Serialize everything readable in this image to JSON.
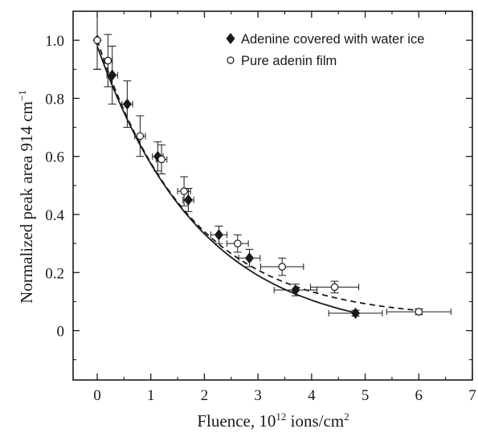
{
  "chart_data": {
    "type": "scatter",
    "title": "",
    "xlabel": {
      "prefix": "Fluence, 10",
      "sup": "12",
      "mid": " ions/cm",
      "sup2": "2"
    },
    "ylabel": {
      "text": "Normalized peak area 914 cm",
      "sup": "−1"
    },
    "xlim": [
      -0.45,
      7
    ],
    "ylim": [
      -0.17,
      1.1
    ],
    "xticks": [
      0,
      1,
      2,
      3,
      4,
      5,
      6,
      7
    ],
    "xtick_labels": [
      "0",
      "1",
      "2",
      "3",
      "4",
      "5",
      "6",
      "7"
    ],
    "yticks": [
      0,
      0.2,
      0.4,
      0.6,
      0.8,
      1.0
    ],
    "ytick_labels": [
      "0",
      "0.2",
      "0.4",
      "0.6",
      "0.8",
      "1.0"
    ],
    "grid": false,
    "legend_position": "top-right",
    "series": [
      {
        "name": "Adenine covered with water ice",
        "marker": "filled-diamond",
        "fit_line": "solid",
        "points": [
          {
            "x": 0.0,
            "y": 1.0,
            "xerr": 0.0,
            "yerr": 0.1
          },
          {
            "x": 0.28,
            "y": 0.88,
            "xerr": 0.1,
            "yerr": 0.1
          },
          {
            "x": 0.56,
            "y": 0.78,
            "xerr": 0.1,
            "yerr": 0.08
          },
          {
            "x": 1.13,
            "y": 0.6,
            "xerr": 0.1,
            "yerr": 0.05
          },
          {
            "x": 1.7,
            "y": 0.45,
            "xerr": 0.1,
            "yerr": 0.04
          },
          {
            "x": 2.27,
            "y": 0.33,
            "xerr": 0.15,
            "yerr": 0.03
          },
          {
            "x": 2.84,
            "y": 0.25,
            "xerr": 0.2,
            "yerr": 0.03
          },
          {
            "x": 3.7,
            "y": 0.14,
            "xerr": 0.4,
            "yerr": 0.02
          },
          {
            "x": 4.82,
            "y": 0.06,
            "xerr": 0.5,
            "yerr": 0.01
          }
        ],
        "fit": {
          "a": 1.0,
          "k": 0.52,
          "c": -0.02
        }
      },
      {
        "name": "Pure adenin film",
        "marker": "open-circle",
        "fit_line": "dashed",
        "points": [
          {
            "x": 0.0,
            "y": 1.0,
            "xerr": 0.0,
            "yerr": 0.1
          },
          {
            "x": 0.2,
            "y": 0.93,
            "xerr": 0.08,
            "yerr": 0.09
          },
          {
            "x": 0.8,
            "y": 0.67,
            "xerr": 0.1,
            "yerr": 0.07
          },
          {
            "x": 1.2,
            "y": 0.59,
            "xerr": 0.1,
            "yerr": 0.05
          },
          {
            "x": 1.62,
            "y": 0.48,
            "xerr": 0.12,
            "yerr": 0.05
          },
          {
            "x": 2.62,
            "y": 0.3,
            "xerr": 0.2,
            "yerr": 0.03
          },
          {
            "x": 3.45,
            "y": 0.22,
            "xerr": 0.4,
            "yerr": 0.03
          },
          {
            "x": 4.43,
            "y": 0.15,
            "xerr": 0.45,
            "yerr": 0.02
          },
          {
            "x": 6.0,
            "y": 0.065,
            "xerr": 0.6,
            "yerr": 0.01
          }
        ],
        "fit": {
          "a": 0.96,
          "k": 0.58,
          "c": 0.04
        }
      }
    ]
  }
}
